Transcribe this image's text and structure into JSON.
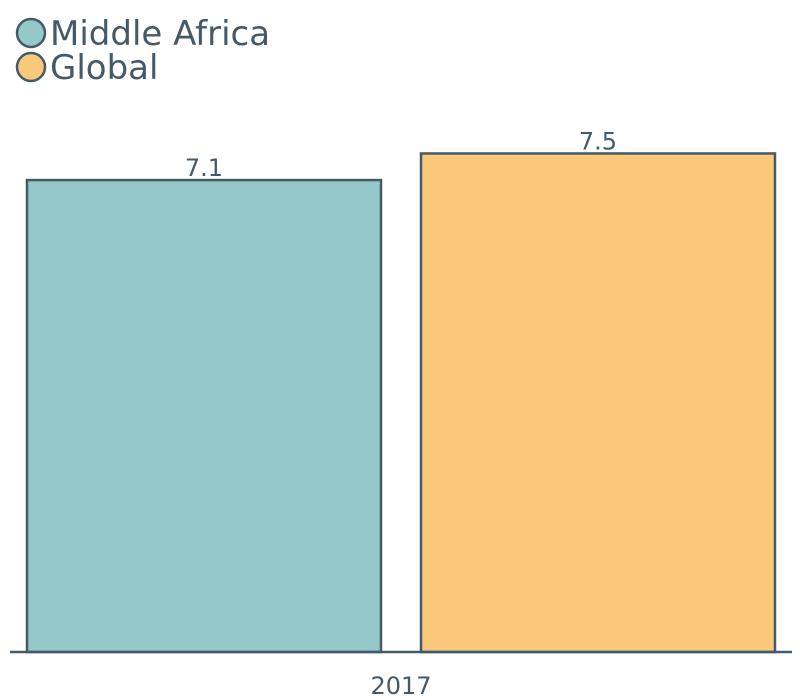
{
  "chart_data": {
    "type": "bar",
    "categories": [
      "2017"
    ],
    "series": [
      {
        "name": "Middle Africa",
        "values": [
          7.1
        ],
        "color": "#95c8c8"
      },
      {
        "name": "Global",
        "values": [
          7.5
        ],
        "color": "#fac87b"
      }
    ],
    "ylim": [
      0,
      8.5
    ],
    "grid": false,
    "legend_position": "top-left",
    "stroke_color": "#455a68"
  }
}
